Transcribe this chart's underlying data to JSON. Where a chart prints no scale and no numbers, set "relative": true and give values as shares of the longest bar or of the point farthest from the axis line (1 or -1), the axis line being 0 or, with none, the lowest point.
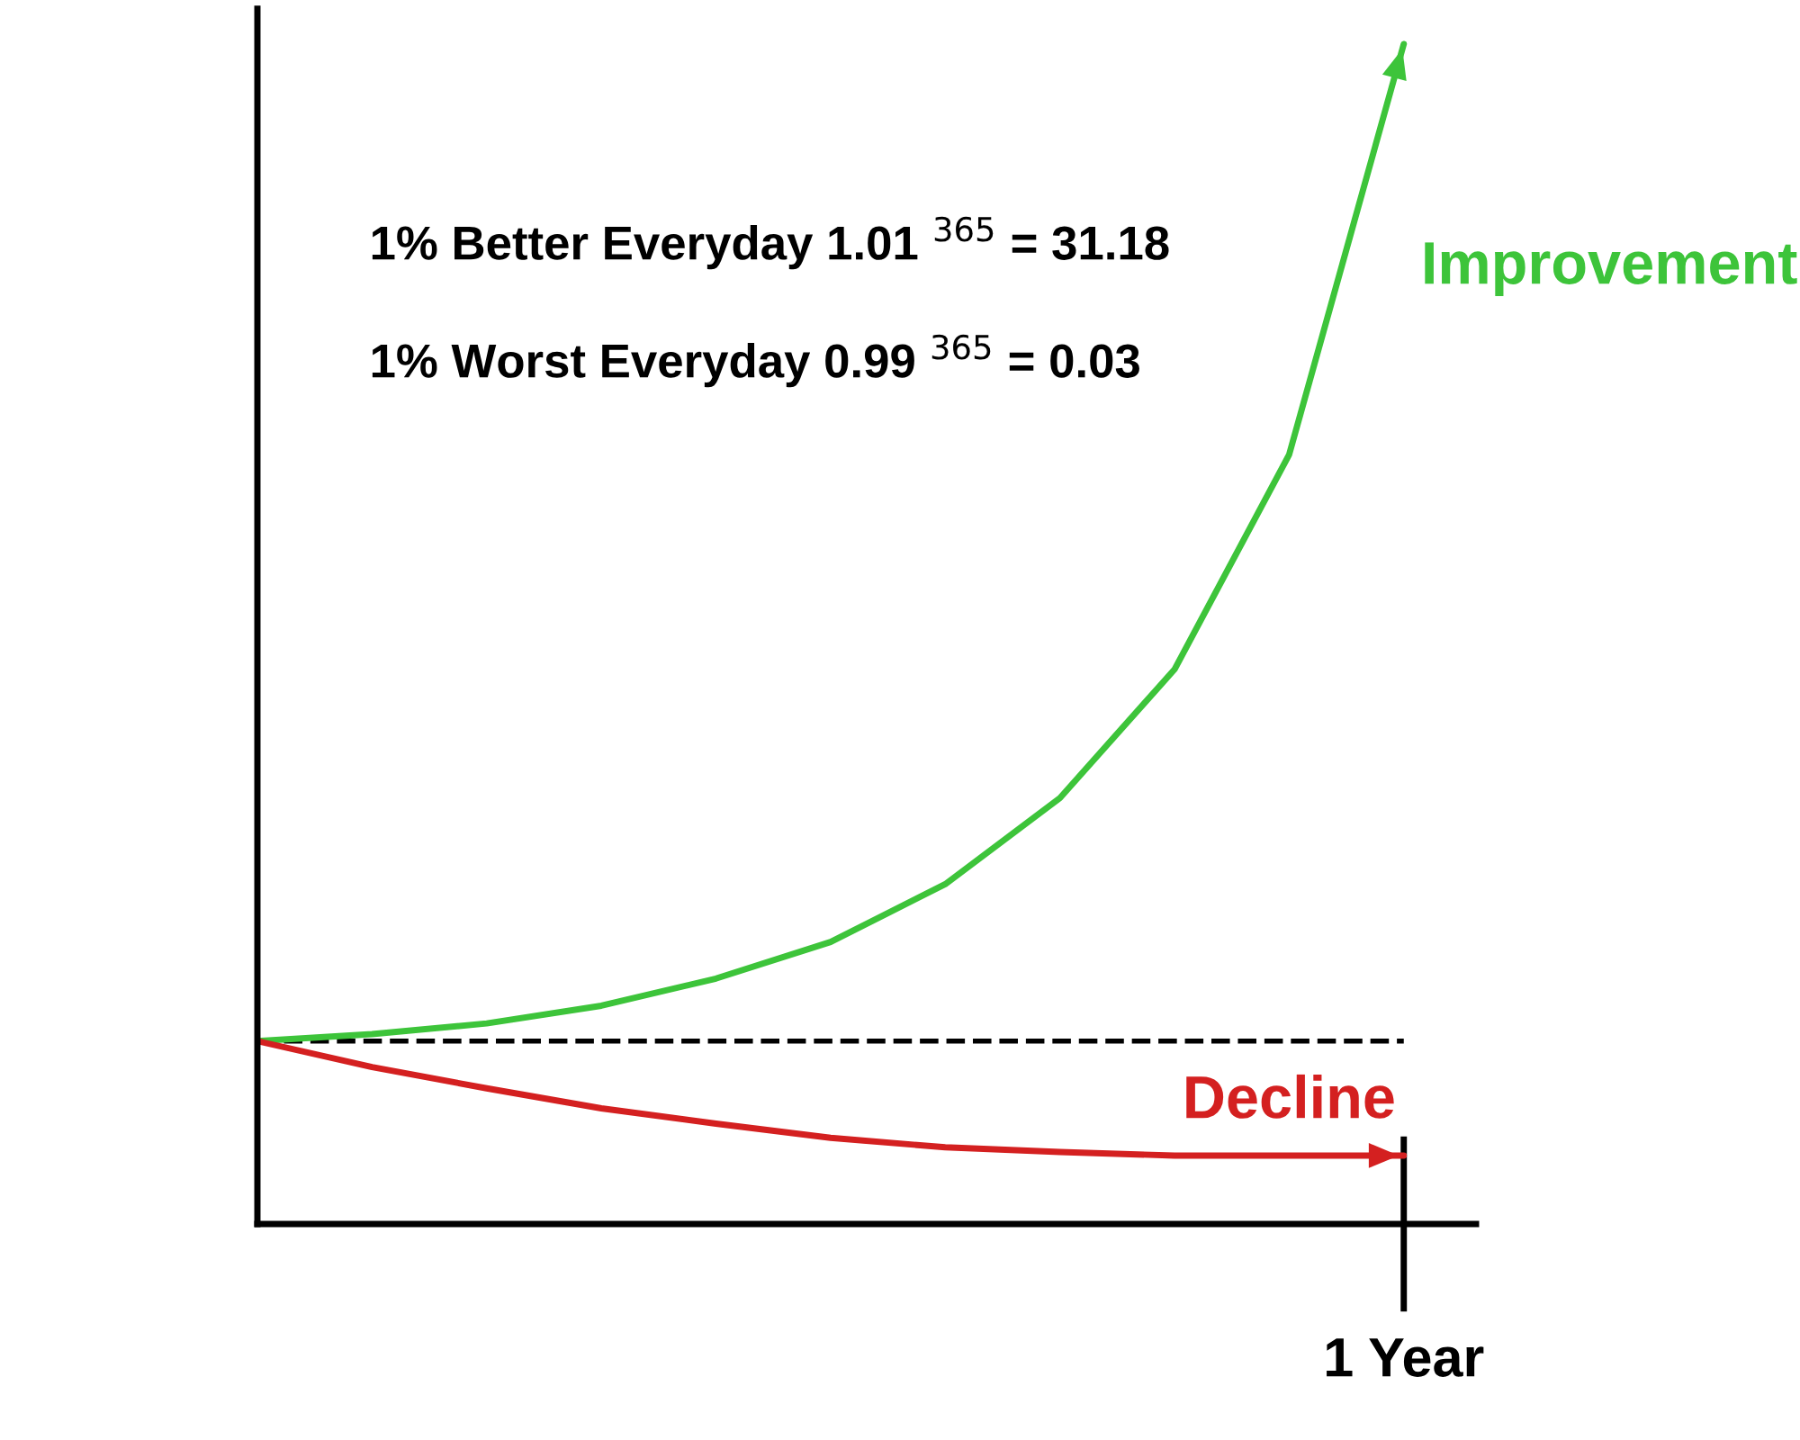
{
  "chart_data": {
    "type": "line",
    "relative": true,
    "categories": [
      null,
      null,
      null,
      null,
      null,
      null,
      null,
      null,
      null,
      null,
      null
    ],
    "series": [
      {
        "name": "Improvement",
        "color": "#3dc43a",
        "values": [
          0.155,
          0.161,
          0.17,
          0.185,
          0.208,
          0.239,
          0.288,
          0.361,
          0.47,
          0.652,
          1.0
        ]
      },
      {
        "name": "Decline",
        "color": "#d42020",
        "values": [
          0.155,
          0.133,
          0.115,
          0.098,
          0.085,
          0.073,
          0.065,
          0.061,
          0.058,
          0.058,
          0.058
        ]
      }
    ],
    "ref_lines": [
      {
        "axis": "y",
        "value": 0.155,
        "color": "#000000",
        "line_style": "dashed"
      }
    ],
    "annotations": [
      "1% Better Everyday 1.01 $^{365}$ = 31.18",
      "1% Worst Everyday 0.99 $^{365}$ = 0.03",
      "1 Year"
    ],
    "legend": false,
    "grid": false,
    "marker": "none",
    "line_style": "solid"
  }
}
